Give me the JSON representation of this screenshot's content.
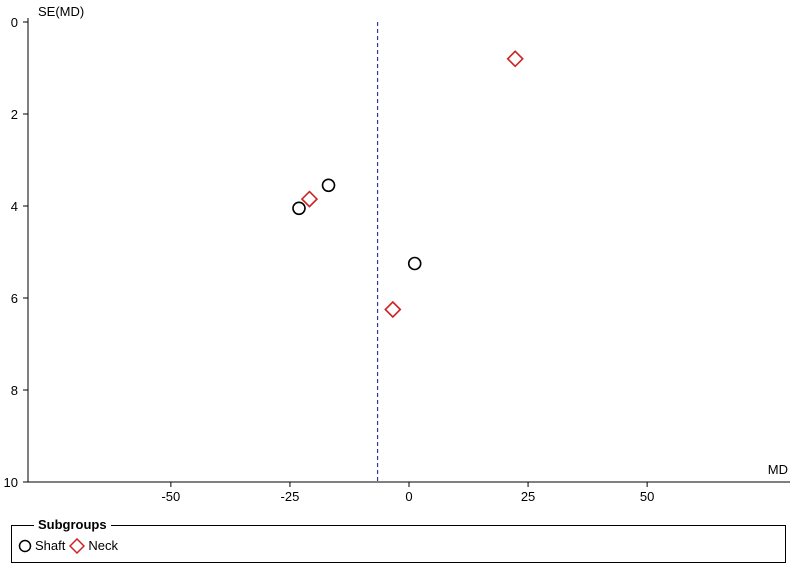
{
  "chart_data": {
    "type": "scatter",
    "title": "",
    "xlabel": "MD",
    "ylabel": "SE(MD)",
    "xlim": [
      -80,
      80
    ],
    "ylim": [
      0,
      10
    ],
    "y_inverted": true,
    "xticks": [
      -50,
      -25,
      0,
      25,
      50
    ],
    "yticks": [
      0,
      2,
      4,
      6,
      8,
      10
    ],
    "reference_line": {
      "x": -6.6,
      "style": "dashed",
      "color": "#3333aa"
    },
    "legend": {
      "title": "Subgroups",
      "placement": "bottom"
    },
    "series": [
      {
        "name": "Shaft",
        "marker": "circle",
        "color": "#000000",
        "points": [
          {
            "x": -16.9,
            "y": 3.55
          },
          {
            "x": -23.1,
            "y": 4.05
          },
          {
            "x": 1.2,
            "y": 5.25
          }
        ]
      },
      {
        "name": "Neck",
        "marker": "diamond",
        "color": "#cc2222",
        "points": [
          {
            "x": 22.3,
            "y": 0.8
          },
          {
            "x": -20.9,
            "y": 3.85
          },
          {
            "x": -3.4,
            "y": 6.25
          }
        ]
      }
    ]
  }
}
